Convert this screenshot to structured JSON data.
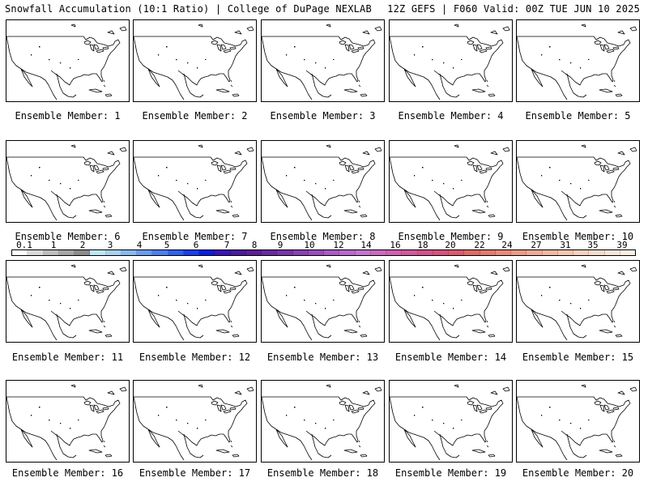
{
  "header": {
    "left_title": "Snowfall Accumulation (10:1 Ratio) | College of DuPage NEXLAB",
    "right_title": "12Z GEFS | F060 Valid: 00Z TUE JUN 10 2025"
  },
  "panels": [
    {
      "label": "Ensemble Member: 1"
    },
    {
      "label": "Ensemble Member: 2"
    },
    {
      "label": "Ensemble Member: 3"
    },
    {
      "label": "Ensemble Member: 4"
    },
    {
      "label": "Ensemble Member: 5"
    },
    {
      "label": "Ensemble Member: 6"
    },
    {
      "label": "Ensemble Member: 7"
    },
    {
      "label": "Ensemble Member: 8"
    },
    {
      "label": "Ensemble Member: 9"
    },
    {
      "label": "Ensemble Member: 10"
    },
    {
      "label": "Ensemble Member: 11"
    },
    {
      "label": "Ensemble Member: 12"
    },
    {
      "label": "Ensemble Member: 13"
    },
    {
      "label": "Ensemble Member: 14"
    },
    {
      "label": "Ensemble Member: 15"
    },
    {
      "label": "Ensemble Member: 16"
    },
    {
      "label": "Ensemble Member: 17"
    },
    {
      "label": "Ensemble Member: 18"
    },
    {
      "label": "Ensemble Member: 19"
    },
    {
      "label": "Ensemble Member: 20"
    }
  ],
  "colorbar": {
    "ticks": [
      "0.1",
      "1",
      "2",
      "3",
      "4",
      "5",
      "6",
      "7",
      "8",
      "9",
      "10",
      "12",
      "14",
      "16",
      "18",
      "20",
      "22",
      "24",
      "27",
      "31",
      "35",
      "39"
    ],
    "colors": [
      "#ffffff",
      "#d9d9d9",
      "#bdbdbd",
      "#a6a6a6",
      "#8c8c8c",
      "#bfe6f2",
      "#a6d2f2",
      "#88b8f0",
      "#6a9cf0",
      "#4c80f0",
      "#3060f0",
      "#1a3ef0",
      "#0a1ee0",
      "#3a14b8",
      "#4c1aa0",
      "#5c2096",
      "#6a2aa0",
      "#7a34aa",
      "#8a40b4",
      "#9a4cbe",
      "#aa5ac8",
      "#ba68d0",
      "#c674d2",
      "#cc6ac0",
      "#d060b0",
      "#d4589e",
      "#d6508c",
      "#d8507c",
      "#dc5a6e",
      "#e06a66",
      "#e47a70",
      "#e88a7c",
      "#ec9a88",
      "#f0aa96",
      "#f2b8a4",
      "#f4c6b2",
      "#f6d2c0",
      "#f8dcca",
      "#fae6d6",
      "#fcefe2"
    ]
  }
}
